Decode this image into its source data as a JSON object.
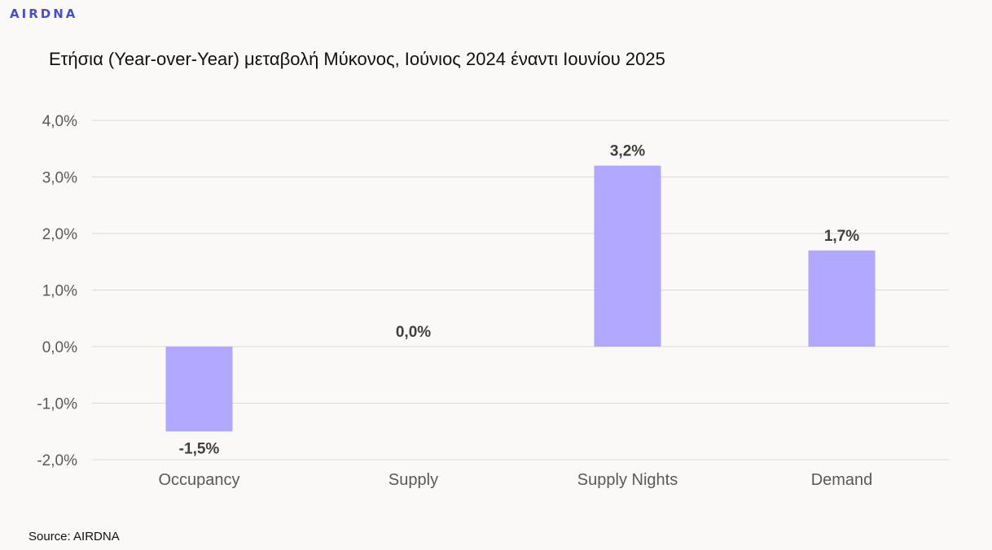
{
  "logo_text": "AIRDNA",
  "source_text": "Source: AIRDNA",
  "colors": {
    "bar": "#b0a8ff",
    "grid": "#d9d9d9",
    "axis_text": "#595959"
  },
  "chart_data": {
    "type": "bar",
    "title": "Ετήσια (Year-over-Year) μεταβολή Μύκονος, Ιούνιος 2024 έναντι Ιουνίου 2025",
    "categories": [
      "Occupancy",
      "Supply",
      "Supply Nights",
      "Demand"
    ],
    "values": [
      -1.5,
      0.0,
      3.2,
      1.7
    ],
    "data_labels": [
      "-1,5%",
      "0,0%",
      "3,2%",
      "1,7%"
    ],
    "ylim": [
      -2,
      4
    ],
    "yticks": [
      4,
      3,
      2,
      1,
      0,
      -1,
      -2
    ],
    "ytick_labels": [
      "4,0%",
      "3,0%",
      "2,0%",
      "1,0%",
      "0,0%",
      "-1,0%",
      "-2,0%"
    ],
    "xlabel": "",
    "ylabel": "",
    "grid": true,
    "legend": "none"
  }
}
